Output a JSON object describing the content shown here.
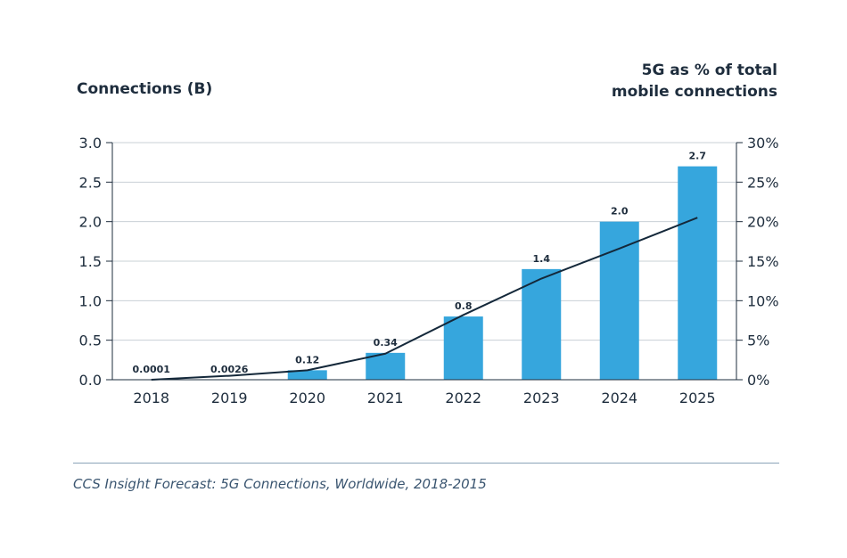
{
  "chart_data": {
    "type": "bar",
    "categories": [
      "2018",
      "2019",
      "2020",
      "2021",
      "2022",
      "2023",
      "2024",
      "2025"
    ],
    "series": [
      {
        "values": [
          0.0001,
          0.0026,
          0.12,
          0.34,
          0.8,
          1.4,
          2.0,
          2.7
        ],
        "labels": [
          "0.0001",
          "0.0026",
          "0.12",
          "0.34",
          "0.8",
          "1.4",
          "2.0",
          "2.7"
        ],
        "axis": "left",
        "kind": "bar",
        "color": "#36a6dd"
      },
      {
        "values": [
          0.0,
          0.5,
          1.2,
          3.3,
          8.2,
          12.8,
          16.6,
          20.5
        ],
        "axis": "right",
        "kind": "line",
        "color": "#14283a"
      }
    ],
    "y_left": {
      "title": "Connections (B)",
      "ylim": [
        0,
        3.0
      ],
      "ticks": [
        "0.0",
        "0.5",
        "1.0",
        "1.5",
        "2.0",
        "2.5",
        "3.0"
      ]
    },
    "y_right": {
      "title_line1": "5G as % of total",
      "title_line2": "mobile connections",
      "ylim": [
        0,
        30
      ],
      "ticks": [
        "0%",
        "5%",
        "10%",
        "15%",
        "20%",
        "25%",
        "30%"
      ]
    },
    "grid": true,
    "gridline_color": "#c9d0d6",
    "axis_color": "#1e2d3d"
  },
  "source": "CCS Insight Forecast: 5G Connections, Worldwide, 2018-2015"
}
